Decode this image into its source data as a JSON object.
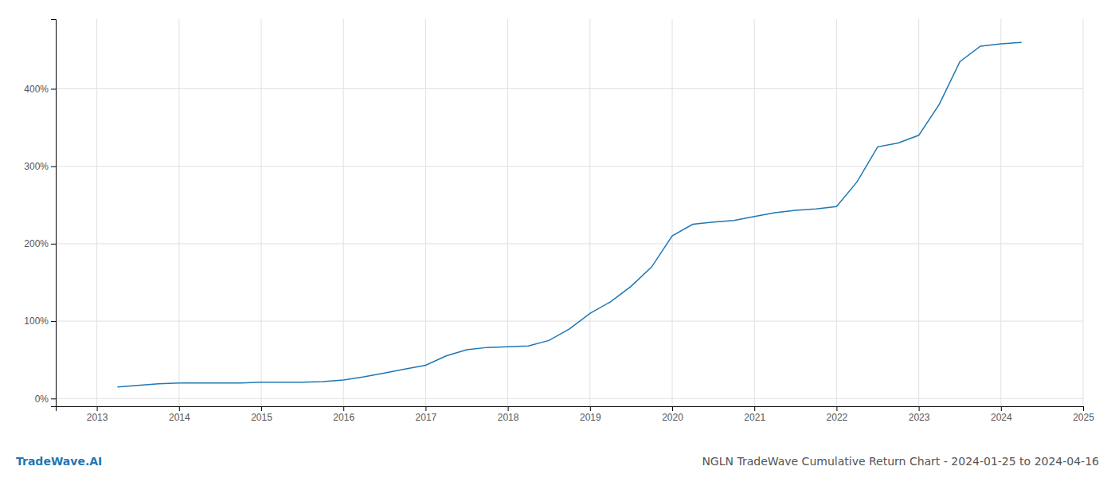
{
  "chart_data": {
    "type": "line",
    "title": "NGLN TradeWave Cumulative Return Chart - 2024-01-25 to 2024-04-16",
    "annotations": [
      "TradeWave.AI"
    ],
    "color": "#1f77b4",
    "grid": true,
    "x": [
      2013.25,
      2013.5,
      2013.75,
      2014.0,
      2014.25,
      2014.5,
      2014.75,
      2015.0,
      2015.25,
      2015.5,
      2015.75,
      2016.0,
      2016.25,
      2016.5,
      2016.75,
      2017.0,
      2017.25,
      2017.5,
      2017.75,
      2018.0,
      2018.25,
      2018.5,
      2018.75,
      2019.0,
      2019.25,
      2019.5,
      2019.75,
      2020.0,
      2020.25,
      2020.5,
      2020.75,
      2021.0,
      2021.25,
      2021.5,
      2021.75,
      2022.0,
      2022.25,
      2022.5,
      2022.75,
      2023.0,
      2023.25,
      2023.5,
      2023.75,
      2024.0,
      2024.25
    ],
    "values": [
      15,
      17,
      19,
      20,
      20,
      20,
      20,
      21,
      21,
      21,
      22,
      24,
      28,
      33,
      38,
      43,
      55,
      63,
      66,
      67,
      68,
      75,
      90,
      110,
      125,
      145,
      170,
      210,
      225,
      228,
      230,
      235,
      240,
      243,
      245,
      248,
      280,
      325,
      330,
      340,
      380,
      435,
      455,
      458,
      460
    ],
    "xlim": [
      2012.5,
      2025
    ],
    "xticks": [
      2013,
      2014,
      2015,
      2016,
      2017,
      2018,
      2019,
      2020,
      2021,
      2022,
      2023,
      2024,
      2025
    ],
    "ylim": [
      -10,
      490
    ],
    "yticks": [
      {
        "value": 0,
        "label": "0%"
      },
      {
        "value": 100,
        "label": "100%"
      },
      {
        "value": 200,
        "label": "200%"
      },
      {
        "value": 300,
        "label": "300%"
      },
      {
        "value": 400,
        "label": "400%"
      }
    ]
  }
}
